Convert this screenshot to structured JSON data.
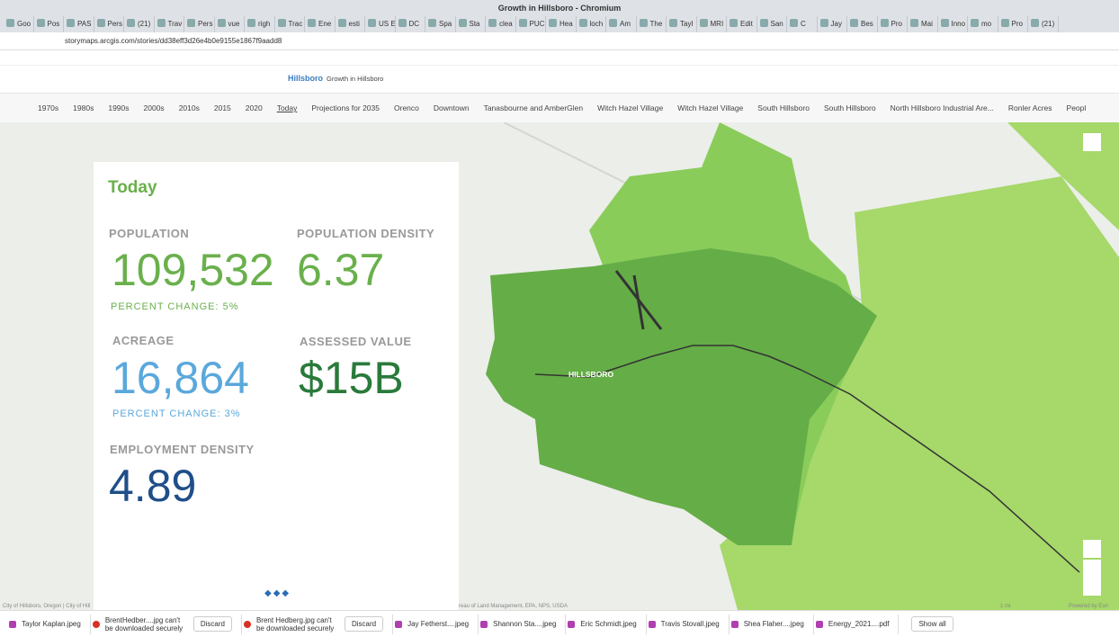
{
  "window": {
    "title": "Growth in Hillsboro - Chromium"
  },
  "tabs": [
    "Goo",
    "Pos",
    "PAS",
    "Pers",
    "(21)",
    "Trav",
    "Pers",
    "vue",
    "righ",
    "Trac",
    "Ene",
    "esti",
    "US E",
    "DC",
    "Spa",
    "Sta",
    "clea",
    "PUC",
    "Hea",
    "loch",
    "Am",
    "The",
    "Tayl",
    "MRI",
    "Edit",
    "San",
    "C",
    "Jay",
    "Bes",
    "Pro",
    "Mai",
    "Inno",
    "mo",
    "Pro",
    "(21)"
  ],
  "address": "storymaps.arcgis.com/stories/dd38eff3d26e4b0e9155e1867f9aadd8",
  "header": {
    "logo": "Hillsboro",
    "story_title": "Growth in Hillsboro"
  },
  "nav": [
    "1970s",
    "1980s",
    "1990s",
    "2000s",
    "2010s",
    "2015",
    "2020",
    "Today",
    "Projections for 2035",
    "Orenco",
    "Downtown",
    "Tanasbourne and AmberGlen",
    "Witch Hazel Village",
    "Witch Hazel Village",
    "South Hillsboro",
    "South Hillsboro",
    "North Hillsboro Industrial Are...",
    "Ronler Acres",
    "Peopl"
  ],
  "panel": {
    "title": "Today",
    "population": {
      "label": "POPULATION",
      "value": "109,532",
      "change": "PERCENT CHANGE: 5%"
    },
    "density": {
      "label": "POPULATION DENSITY",
      "value": "6.37"
    },
    "acreage": {
      "label": "ACREAGE",
      "value": "16,864",
      "change": "PERCENT CHANGE: 3%"
    },
    "assessed": {
      "label": "ASSESSED VALUE",
      "value": "$15B"
    },
    "employment": {
      "label": "EMPLOYMENT DENSITY",
      "value": "4.89"
    }
  },
  "map": {
    "city_label": "HILLSBORO",
    "attribution_left": "City of Hillsboro, Oregon | City of Hill",
    "attribution_mid": "reau of Land Management, EPA, NPS, USDA",
    "scale": "1 mi",
    "powered": "Powered by Esri"
  },
  "downloads": [
    {
      "name": "Taylor Kaplan.jpeg"
    },
    {
      "name": "BrentHedber....jpg can't be downloaded securely",
      "action": "Discard"
    },
    {
      "name": "Brent Hedberg.jpg can't be downloaded securely",
      "action": "Discard"
    },
    {
      "name": "Jay Fetherst....jpeg"
    },
    {
      "name": "Shannon Sta....jpeg"
    },
    {
      "name": "Eric Schmidt.jpeg"
    },
    {
      "name": "Travis Stovall.jpeg"
    },
    {
      "name": "Shea Flaher....jpeg"
    },
    {
      "name": "Energy_2021....pdf"
    }
  ],
  "show_all": "Show all"
}
